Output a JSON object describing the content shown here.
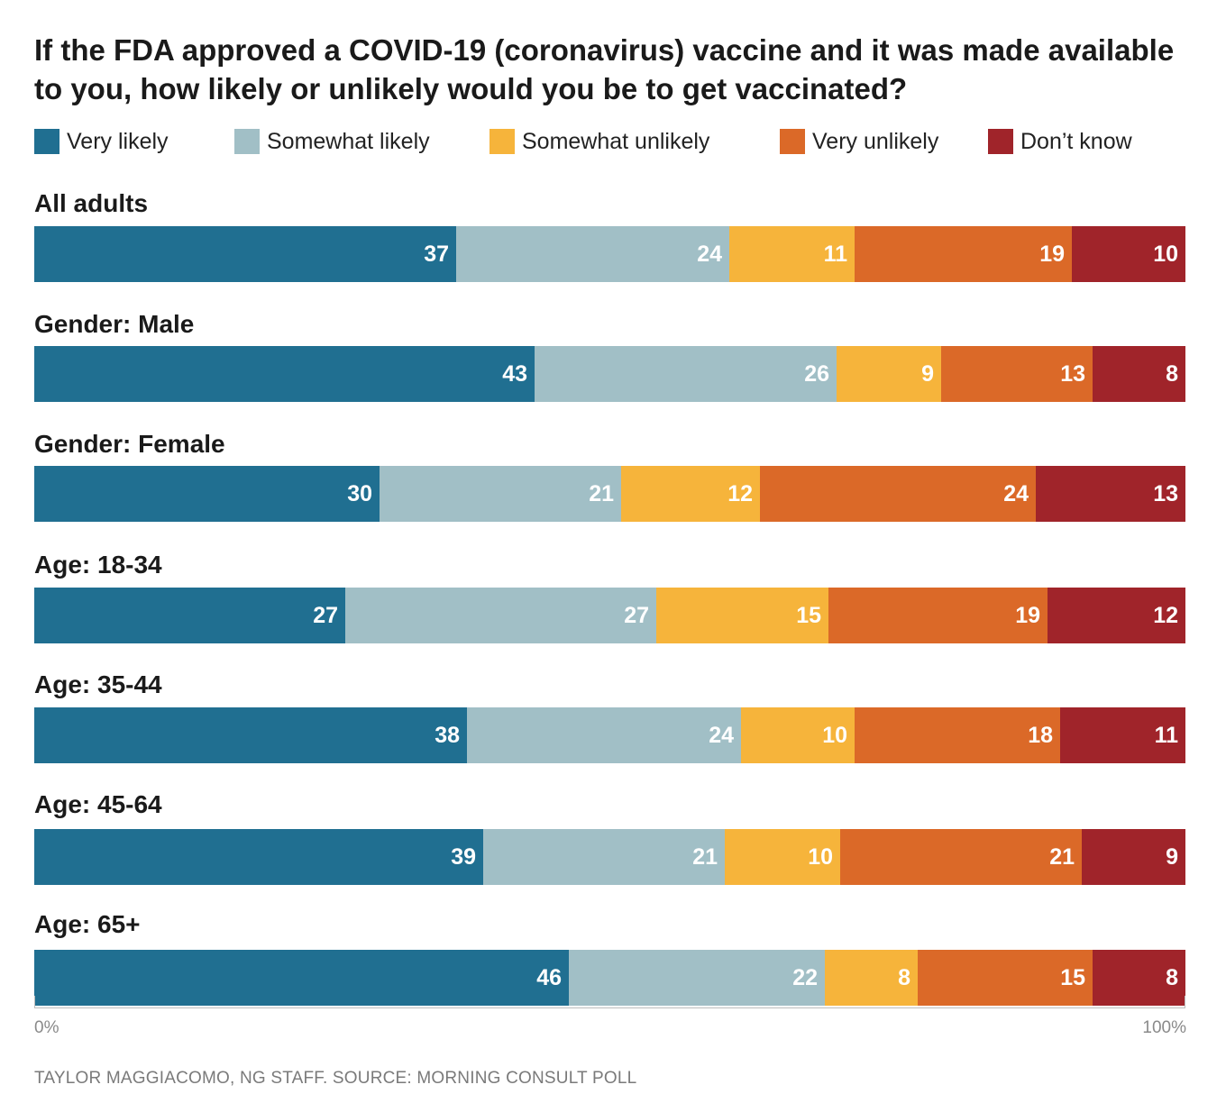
{
  "chart_data": {
    "type": "bar",
    "orientation": "horizontal-stacked-100",
    "title": "If the FDA approved a COVID-19 (coronavirus) vaccine and it was made available to you, how likely or unlikely would you be to get vaccinated?",
    "categories": [
      "All adults",
      "Gender: Male",
      "Gender: Female",
      "Age: 18-34",
      "Age: 35-44",
      "Age: 45-64",
      "Age: 65+"
    ],
    "series": [
      {
        "name": "Very likely",
        "color": "#206f91",
        "values": [
          37,
          43,
          30,
          27,
          38,
          39,
          46
        ]
      },
      {
        "name": "Somewhat likely",
        "color": "#a1bfc6",
        "values": [
          24,
          26,
          21,
          27,
          24,
          21,
          22
        ]
      },
      {
        "name": "Somewhat unlikely",
        "color": "#f6b43b",
        "values": [
          11,
          9,
          12,
          15,
          10,
          10,
          8
        ]
      },
      {
        "name": "Very unlikely",
        "color": "#db6928",
        "values": [
          19,
          13,
          24,
          19,
          18,
          21,
          15
        ]
      },
      {
        "name": "Don’t know",
        "color": "#a0242a",
        "values": [
          10,
          8,
          13,
          12,
          11,
          9,
          8
        ]
      }
    ],
    "x_ticks": [
      "0%",
      "100%"
    ],
    "legend_position": "top",
    "grid": false
  },
  "source": "TAYLOR MAGGIACOMO, NG STAFF. SOURCE: MORNING CONSULT POLL"
}
